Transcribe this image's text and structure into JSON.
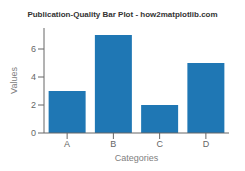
{
  "chart_data": {
    "type": "bar",
    "title": "Publication-Quality Bar Plot - how2matplotlib.com",
    "xlabel": "Categories",
    "ylabel": "Values",
    "categories": [
      "A",
      "B",
      "C",
      "D"
    ],
    "values": [
      3,
      7,
      2,
      5
    ],
    "color": "#1f77b4",
    "ylim": [
      0,
      7.5
    ],
    "yticks": [
      0,
      2,
      4,
      6
    ],
    "grid": false
  }
}
